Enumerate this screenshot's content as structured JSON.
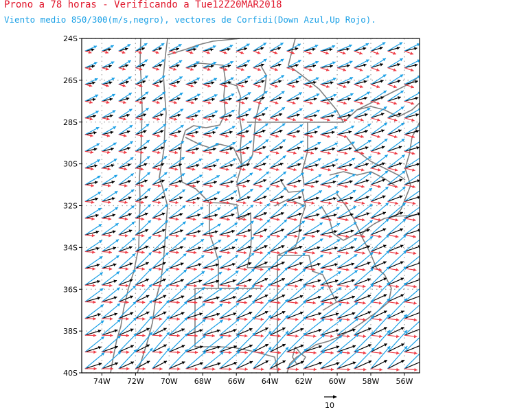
{
  "header": {
    "title": "Prono a 78 horas - Verificando a Tue12Z20MAR2018",
    "subtitle": "Viento medio 850/300(m/s,negro), vectores de Corfidi(Down Azul,Up Rojo)."
  },
  "map": {
    "lat_labels": [
      "24S",
      "26S",
      "28S",
      "30S",
      "32S",
      "34S",
      "36S",
      "38S",
      "40S"
    ],
    "lon_labels": [
      "74W",
      "72W",
      "70W",
      "68W",
      "66W",
      "64W",
      "62W",
      "60W",
      "58W",
      "56W"
    ],
    "lon_range": [
      -75.2,
      -55.1
    ],
    "lat_range": [
      -40,
      -24
    ],
    "grid": true
  },
  "legend": {
    "reference_value": "10"
  },
  "colors": {
    "mean_wind": "#000000",
    "corfidi_down": "#1aa0e6",
    "corfidi_up": "#f03c46",
    "borders": "#808080",
    "title": "#e0162b",
    "subtitle": "#1aa0e6"
  }
}
